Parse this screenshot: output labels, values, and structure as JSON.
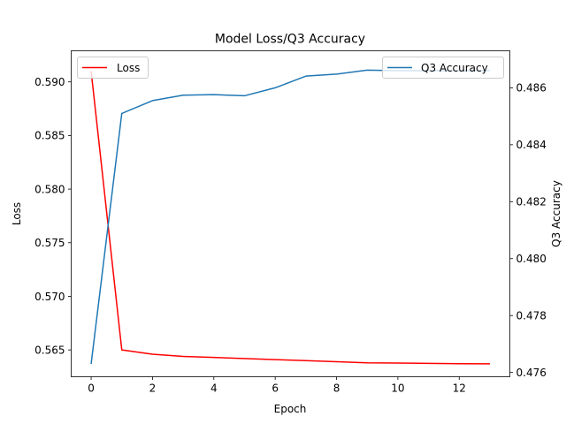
{
  "chart_data": {
    "type": "line",
    "title": "Model Loss/Q3 Accuracy",
    "xlabel": "Epoch",
    "ylabel_left": "Loss",
    "ylabel_right": "Q3 Accuracy",
    "x": [
      0,
      1,
      2,
      3,
      4,
      5,
      6,
      7,
      8,
      9,
      10,
      11,
      12,
      13
    ],
    "xlim": [
      -0.65,
      13.65
    ],
    "xticks": [
      "0",
      "2",
      "4",
      "6",
      "8",
      "10",
      "12"
    ],
    "ylim_left": [
      0.5625,
      0.5929
    ],
    "yticks_left": [
      "0.565",
      "0.570",
      "0.575",
      "0.580",
      "0.585",
      "0.590"
    ],
    "ylim_right": [
      0.47585,
      0.4873
    ],
    "yticks_right": [
      "0.476",
      "0.478",
      "0.480",
      "0.482",
      "0.484",
      "0.486"
    ],
    "series": [
      {
        "name": "Loss",
        "axis": "left",
        "color": "#ff0000",
        "values": [
          0.591,
          0.565,
          0.5646,
          0.5644,
          0.5643,
          0.5642,
          0.5641,
          0.564,
          0.5639,
          0.5638,
          0.56378,
          0.56375,
          0.56372,
          0.5637
        ]
      },
      {
        "name": "Q3 Accuracy",
        "axis": "right",
        "color": "#1f77b4",
        "values": [
          0.4763,
          0.4851,
          0.48555,
          0.48574,
          0.48576,
          0.48572,
          0.486,
          0.48641,
          0.48648,
          0.48662,
          0.4866,
          0.4866,
          0.4866,
          0.4866
        ]
      }
    ],
    "legends": [
      {
        "series": "Loss",
        "placement": "top-left"
      },
      {
        "series": "Q3 Accuracy",
        "placement": "top-right"
      }
    ]
  }
}
